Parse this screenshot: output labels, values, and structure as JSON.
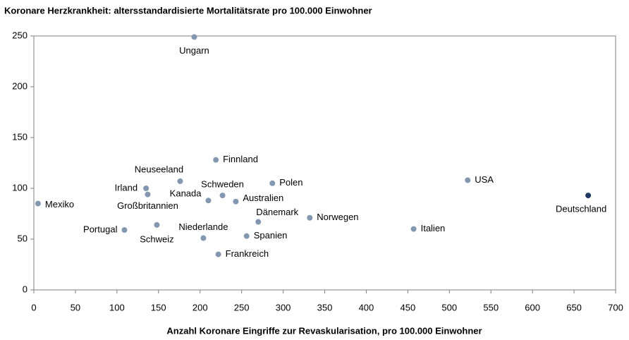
{
  "chart_data": {
    "type": "scatter",
    "title": "Koronare Herzkrankheit: altersstandardisierte Mortalitätsrate pro 100.000 Einwohner",
    "x_label": "Anzahl Koronare Eingriffe zur Revaskularisation, pro 100.000 Einwohner",
    "xlim": [
      0,
      700
    ],
    "xticks": [
      0,
      50,
      100,
      150,
      200,
      250,
      300,
      350,
      400,
      450,
      500,
      550,
      600,
      650,
      700
    ],
    "ylim": [
      0,
      250
    ],
    "yticks": [
      0,
      50,
      100,
      150,
      200,
      250
    ],
    "grid": false,
    "series": [
      {
        "color": "#8497b0",
        "labels": [
          "Ungarn",
          "Mexiko",
          "Irland",
          "Großbritannien",
          "Neuseeland",
          "Portugal",
          "Schweiz",
          "Finnland",
          "Kanada",
          "Schweden",
          "Australien",
          "Polen",
          "Dänemark",
          "Niederlande",
          "Spanien",
          "Frankreich",
          "Norwegen",
          "Italien",
          "USA"
        ],
        "x": [
          193,
          5,
          135,
          137,
          176,
          109,
          148,
          219,
          210,
          227,
          243,
          287,
          270,
          204,
          256,
          222,
          332,
          457,
          522
        ],
        "y": [
          249,
          85,
          100,
          94,
          107,
          59,
          64,
          128,
          88,
          93,
          87,
          105,
          67,
          51,
          53,
          35,
          71,
          60,
          108
        ]
      },
      {
        "color": "#1f3864",
        "labels": [
          "Deutschland"
        ],
        "x": [
          667
        ],
        "y": [
          93
        ]
      }
    ]
  }
}
